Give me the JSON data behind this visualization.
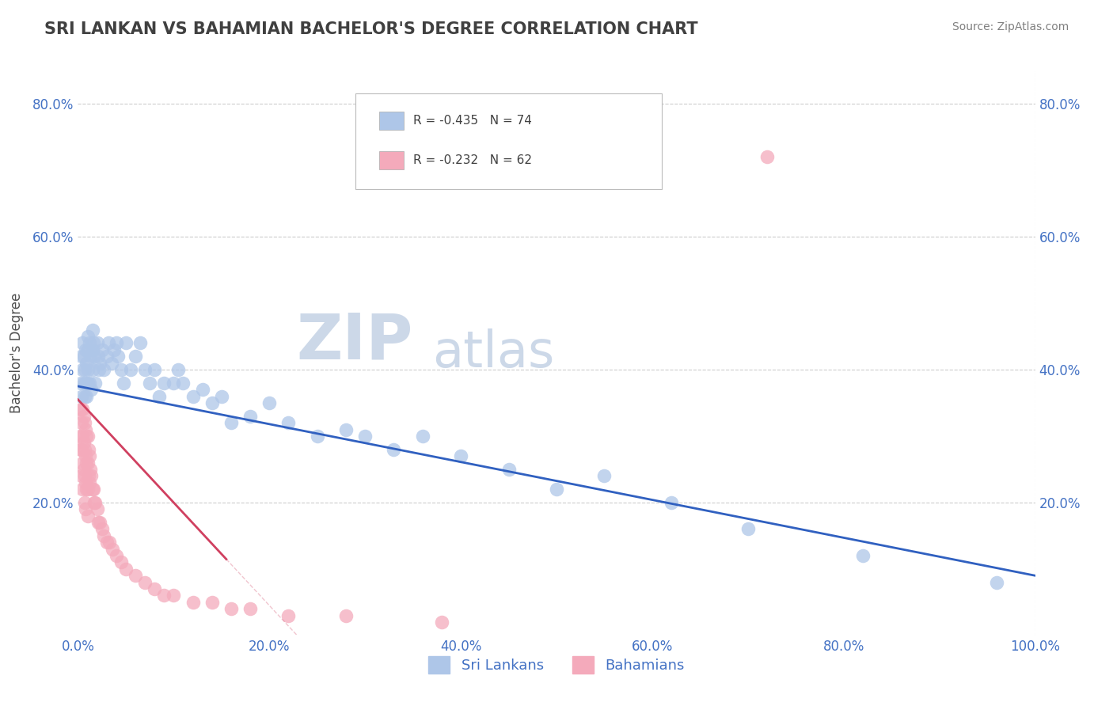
{
  "title": "SRI LANKAN VS BAHAMIAN BACHELOR'S DEGREE CORRELATION CHART",
  "source": "Source: ZipAtlas.com",
  "ylabel": "Bachelor's Degree",
  "xlabel": "",
  "xlim": [
    0.0,
    1.0
  ],
  "ylim": [
    0.0,
    0.85
  ],
  "xtick_vals": [
    0.0,
    0.2,
    0.4,
    0.6,
    0.8,
    1.0
  ],
  "xtick_labels": [
    "0.0%",
    "20.0%",
    "40.0%",
    "60.0%",
    "80.0%",
    "100.0%"
  ],
  "ytick_vals": [
    0.2,
    0.4,
    0.6,
    0.8
  ],
  "ytick_labels": [
    "20.0%",
    "40.0%",
    "60.0%",
    "80.0%"
  ],
  "legend1_text": "R = -0.435   N = 74",
  "legend2_text": "R = -0.232   N = 62",
  "legend_group1": "Sri Lankans",
  "legend_group2": "Bahamians",
  "blue_color": "#aec6e8",
  "pink_color": "#f4aabb",
  "blue_line_color": "#3060c0",
  "pink_line_color": "#d04060",
  "watermark_zip": "ZIP",
  "watermark_atlas": "atlas",
  "title_color": "#404040",
  "blue_intercept": 0.375,
  "blue_slope": -0.285,
  "pink_intercept": 0.355,
  "pink_slope": -1.55,
  "pink_line_xmax": 0.155,
  "background_color": "#ffffff",
  "grid_color": "#cccccc",
  "watermark_color": "#ccd8e8",
  "sri_lankan_x": [
    0.003,
    0.004,
    0.004,
    0.005,
    0.005,
    0.006,
    0.006,
    0.007,
    0.007,
    0.008,
    0.008,
    0.009,
    0.009,
    0.01,
    0.01,
    0.01,
    0.01,
    0.012,
    0.012,
    0.013,
    0.014,
    0.015,
    0.015,
    0.015,
    0.016,
    0.017,
    0.018,
    0.02,
    0.021,
    0.022,
    0.023,
    0.025,
    0.027,
    0.03,
    0.032,
    0.035,
    0.038,
    0.04,
    0.042,
    0.045,
    0.048,
    0.05,
    0.055,
    0.06,
    0.065,
    0.07,
    0.075,
    0.08,
    0.085,
    0.09,
    0.1,
    0.105,
    0.11,
    0.12,
    0.13,
    0.14,
    0.15,
    0.16,
    0.18,
    0.2,
    0.22,
    0.25,
    0.28,
    0.3,
    0.33,
    0.36,
    0.4,
    0.45,
    0.5,
    0.55,
    0.62,
    0.7,
    0.82,
    0.96
  ],
  "sri_lankan_y": [
    0.38,
    0.42,
    0.36,
    0.4,
    0.44,
    0.38,
    0.42,
    0.36,
    0.4,
    0.38,
    0.43,
    0.36,
    0.41,
    0.38,
    0.43,
    0.45,
    0.4,
    0.44,
    0.38,
    0.42,
    0.37,
    0.43,
    0.46,
    0.4,
    0.44,
    0.42,
    0.38,
    0.44,
    0.42,
    0.4,
    0.41,
    0.43,
    0.4,
    0.42,
    0.44,
    0.41,
    0.43,
    0.44,
    0.42,
    0.4,
    0.38,
    0.44,
    0.4,
    0.42,
    0.44,
    0.4,
    0.38,
    0.4,
    0.36,
    0.38,
    0.38,
    0.4,
    0.38,
    0.36,
    0.37,
    0.35,
    0.36,
    0.32,
    0.33,
    0.35,
    0.32,
    0.3,
    0.31,
    0.3,
    0.28,
    0.3,
    0.27,
    0.25,
    0.22,
    0.24,
    0.2,
    0.16,
    0.12,
    0.08
  ],
  "bahamian_x": [
    0.002,
    0.003,
    0.003,
    0.004,
    0.004,
    0.004,
    0.005,
    0.005,
    0.005,
    0.005,
    0.006,
    0.006,
    0.006,
    0.007,
    0.007,
    0.007,
    0.007,
    0.008,
    0.008,
    0.008,
    0.008,
    0.009,
    0.009,
    0.009,
    0.01,
    0.01,
    0.01,
    0.01,
    0.011,
    0.011,
    0.012,
    0.012,
    0.013,
    0.014,
    0.015,
    0.016,
    0.017,
    0.018,
    0.02,
    0.021,
    0.023,
    0.025,
    0.027,
    0.03,
    0.033,
    0.036,
    0.04,
    0.045,
    0.05,
    0.06,
    0.07,
    0.08,
    0.09,
    0.1,
    0.12,
    0.14,
    0.16,
    0.18,
    0.22,
    0.28,
    0.38,
    0.72
  ],
  "bahamian_y": [
    0.3,
    0.34,
    0.28,
    0.32,
    0.28,
    0.24,
    0.34,
    0.3,
    0.26,
    0.22,
    0.33,
    0.29,
    0.25,
    0.32,
    0.28,
    0.24,
    0.2,
    0.31,
    0.27,
    0.23,
    0.19,
    0.3,
    0.26,
    0.22,
    0.3,
    0.26,
    0.22,
    0.18,
    0.28,
    0.24,
    0.27,
    0.23,
    0.25,
    0.24,
    0.22,
    0.22,
    0.2,
    0.2,
    0.19,
    0.17,
    0.17,
    0.16,
    0.15,
    0.14,
    0.14,
    0.13,
    0.12,
    0.11,
    0.1,
    0.09,
    0.08,
    0.07,
    0.06,
    0.06,
    0.05,
    0.05,
    0.04,
    0.04,
    0.03,
    0.03,
    0.02,
    0.72
  ]
}
